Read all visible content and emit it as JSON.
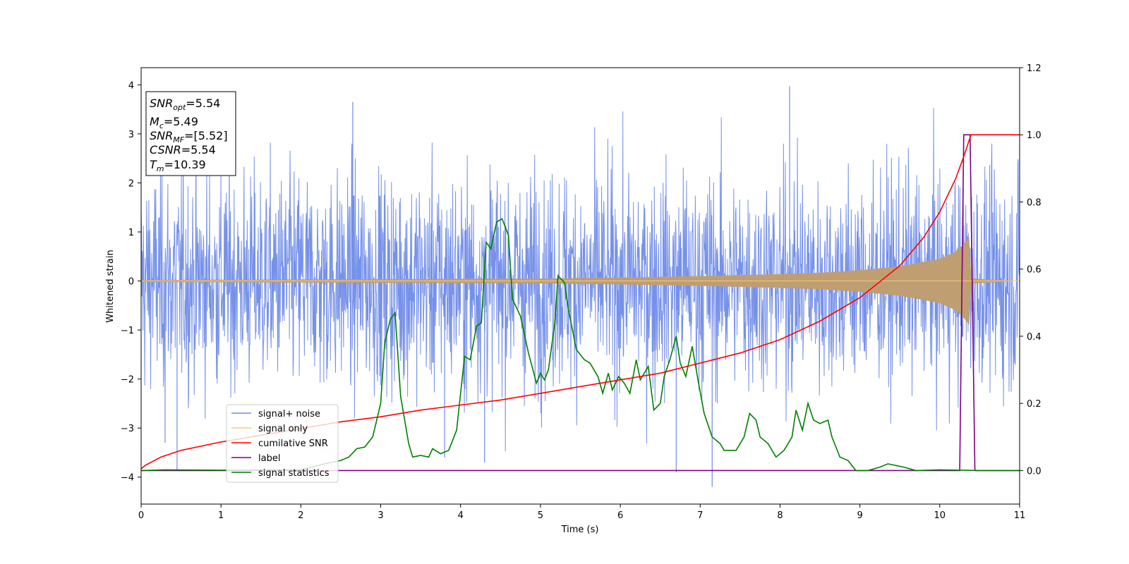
{
  "chart_data": {
    "type": "line",
    "xlabel": "Time (s)",
    "ylabel": "Whitened strain",
    "xlim": [
      0,
      11
    ],
    "ylim": [
      -4.55,
      4.35
    ],
    "y2lim": [
      -0.1,
      1.2
    ],
    "x_ticks": [
      "0",
      "1",
      "2",
      "3",
      "4",
      "5",
      "6",
      "7",
      "8",
      "9",
      "10",
      "11"
    ],
    "y_ticks": [
      "−4",
      "−3",
      "−2",
      "−1",
      "0",
      "1",
      "2",
      "3",
      "4"
    ],
    "y2_ticks": [
      "0.0",
      "0.2",
      "0.4",
      "0.6",
      "0.8",
      "1.0",
      "1.2"
    ],
    "grid": false,
    "legend_position": "lower-left",
    "colors": {
      "noise": "#6f8be8",
      "signal": "#f5c77a",
      "csnr": "#ff0000",
      "label": "#800080",
      "stats": "#008000"
    },
    "info_box": {
      "snr_opt": {
        "base": "SNR",
        "sub": "opt",
        "value": "=5.54"
      },
      "mc": {
        "base": "M",
        "sub": "c",
        "value": "=5.49"
      },
      "snr_mf": {
        "base": "SNR",
        "sub": "MF",
        "value": "=[5.52]"
      },
      "csnr": {
        "base": "CSNR",
        "value": "=5.54"
      },
      "tm": {
        "base": "T",
        "sub": "m",
        "value": "=10.39"
      }
    },
    "series": [
      {
        "name": "signal+ noise",
        "axis": "left",
        "description_values": {
          "noise_std": 1.1,
          "min": -4.2,
          "max": 3.97
        },
        "spikes": [
          [
            0.45,
            -3.85
          ],
          [
            2.65,
            3.65
          ],
          [
            4.3,
            -3.7
          ],
          [
            7.15,
            -4.2
          ],
          [
            8.12,
            3.97
          ],
          [
            6.7,
            -3.9
          ],
          [
            3.8,
            -3.6
          ],
          [
            0.3,
            -3.3
          ]
        ]
      },
      {
        "name": "signal only",
        "axis": "left",
        "envelope": [
          [
            0,
            0.02
          ],
          [
            5,
            0.05
          ],
          [
            6,
            0.07
          ],
          [
            7,
            0.1
          ],
          [
            8,
            0.14
          ],
          [
            8.5,
            0.17
          ],
          [
            9,
            0.22
          ],
          [
            9.5,
            0.3
          ],
          [
            10,
            0.45
          ],
          [
            10.2,
            0.6
          ],
          [
            10.3,
            0.75
          ],
          [
            10.37,
            0.9
          ],
          [
            10.39,
            0.05
          ],
          [
            11,
            0.0
          ]
        ]
      },
      {
        "name": "cumilative SNR",
        "axis": "right",
        "points": [
          [
            0,
            0.005
          ],
          [
            0.05,
            0.015
          ],
          [
            0.25,
            0.04
          ],
          [
            0.5,
            0.06
          ],
          [
            1,
            0.085
          ],
          [
            1.5,
            0.105
          ],
          [
            2,
            0.125
          ],
          [
            2.5,
            0.145
          ],
          [
            3,
            0.16
          ],
          [
            3.5,
            0.18
          ],
          [
            4,
            0.195
          ],
          [
            4.5,
            0.21
          ],
          [
            5,
            0.23
          ],
          [
            5.5,
            0.25
          ],
          [
            6,
            0.27
          ],
          [
            6.5,
            0.29
          ],
          [
            7,
            0.32
          ],
          [
            7.5,
            0.35
          ],
          [
            8,
            0.39
          ],
          [
            8.5,
            0.445
          ],
          [
            9,
            0.515
          ],
          [
            9.5,
            0.61
          ],
          [
            9.8,
            0.695
          ],
          [
            10,
            0.77
          ],
          [
            10.2,
            0.87
          ],
          [
            10.3,
            0.935
          ],
          [
            10.39,
            1.0
          ],
          [
            11,
            1.0
          ]
        ]
      },
      {
        "name": "label",
        "axis": "right",
        "points": [
          [
            0,
            0.0
          ],
          [
            10.25,
            0.0
          ],
          [
            10.3,
            1.0
          ],
          [
            10.38,
            1.0
          ],
          [
            10.44,
            0.0
          ],
          [
            11,
            0.0
          ]
        ]
      },
      {
        "name": "signal statistics",
        "axis": "right",
        "points": [
          [
            0,
            0.0
          ],
          [
            0.3,
            0.002
          ],
          [
            1,
            0.001
          ],
          [
            2,
            0.002
          ],
          [
            2.3,
            0.02
          ],
          [
            2.5,
            0.03
          ],
          [
            2.6,
            0.04
          ],
          [
            2.7,
            0.065
          ],
          [
            2.8,
            0.07
          ],
          [
            2.9,
            0.1
          ],
          [
            3.0,
            0.2
          ],
          [
            3.05,
            0.38
          ],
          [
            3.12,
            0.45
          ],
          [
            3.18,
            0.47
          ],
          [
            3.25,
            0.22
          ],
          [
            3.35,
            0.08
          ],
          [
            3.4,
            0.04
          ],
          [
            3.5,
            0.045
          ],
          [
            3.6,
            0.04
          ],
          [
            3.65,
            0.065
          ],
          [
            3.75,
            0.05
          ],
          [
            3.85,
            0.06
          ],
          [
            3.95,
            0.12
          ],
          [
            4.05,
            0.34
          ],
          [
            4.12,
            0.33
          ],
          [
            4.2,
            0.43
          ],
          [
            4.26,
            0.44
          ],
          [
            4.32,
            0.68
          ],
          [
            4.38,
            0.66
          ],
          [
            4.45,
            0.74
          ],
          [
            4.52,
            0.75
          ],
          [
            4.6,
            0.7
          ],
          [
            4.65,
            0.51
          ],
          [
            4.75,
            0.46
          ],
          [
            4.85,
            0.35
          ],
          [
            4.95,
            0.26
          ],
          [
            5.0,
            0.29
          ],
          [
            5.05,
            0.27
          ],
          [
            5.1,
            0.3
          ],
          [
            5.18,
            0.44
          ],
          [
            5.22,
            0.58
          ],
          [
            5.3,
            0.56
          ],
          [
            5.35,
            0.48
          ],
          [
            5.45,
            0.36
          ],
          [
            5.55,
            0.33
          ],
          [
            5.62,
            0.32
          ],
          [
            5.72,
            0.28
          ],
          [
            5.78,
            0.23
          ],
          [
            5.85,
            0.29
          ],
          [
            5.9,
            0.24
          ],
          [
            5.98,
            0.28
          ],
          [
            6.05,
            0.26
          ],
          [
            6.12,
            0.23
          ],
          [
            6.2,
            0.33
          ],
          [
            6.25,
            0.27
          ],
          [
            6.35,
            0.31
          ],
          [
            6.42,
            0.18
          ],
          [
            6.5,
            0.2
          ],
          [
            6.55,
            0.28
          ],
          [
            6.62,
            0.33
          ],
          [
            6.7,
            0.4
          ],
          [
            6.75,
            0.32
          ],
          [
            6.82,
            0.28
          ],
          [
            6.9,
            0.37
          ],
          [
            6.98,
            0.26
          ],
          [
            7.05,
            0.17
          ],
          [
            7.15,
            0.1
          ],
          [
            7.25,
            0.08
          ],
          [
            7.3,
            0.06
          ],
          [
            7.45,
            0.06
          ],
          [
            7.55,
            0.1
          ],
          [
            7.62,
            0.17
          ],
          [
            7.7,
            0.15
          ],
          [
            7.75,
            0.1
          ],
          [
            7.85,
            0.08
          ],
          [
            7.95,
            0.04
          ],
          [
            8.05,
            0.06
          ],
          [
            8.15,
            0.1
          ],
          [
            8.2,
            0.18
          ],
          [
            8.28,
            0.12
          ],
          [
            8.35,
            0.2
          ],
          [
            8.42,
            0.15
          ],
          [
            8.5,
            0.14
          ],
          [
            8.6,
            0.15
          ],
          [
            8.65,
            0.1
          ],
          [
            8.75,
            0.04
          ],
          [
            8.85,
            0.03
          ],
          [
            8.95,
            0.0
          ],
          [
            9.1,
            0.0
          ],
          [
            9.25,
            0.01
          ],
          [
            9.35,
            0.02
          ],
          [
            9.55,
            0.01
          ],
          [
            9.7,
            0.0
          ],
          [
            10.0,
            0.002
          ],
          [
            10.5,
            0.0
          ],
          [
            11,
            0.0
          ]
        ]
      }
    ]
  }
}
